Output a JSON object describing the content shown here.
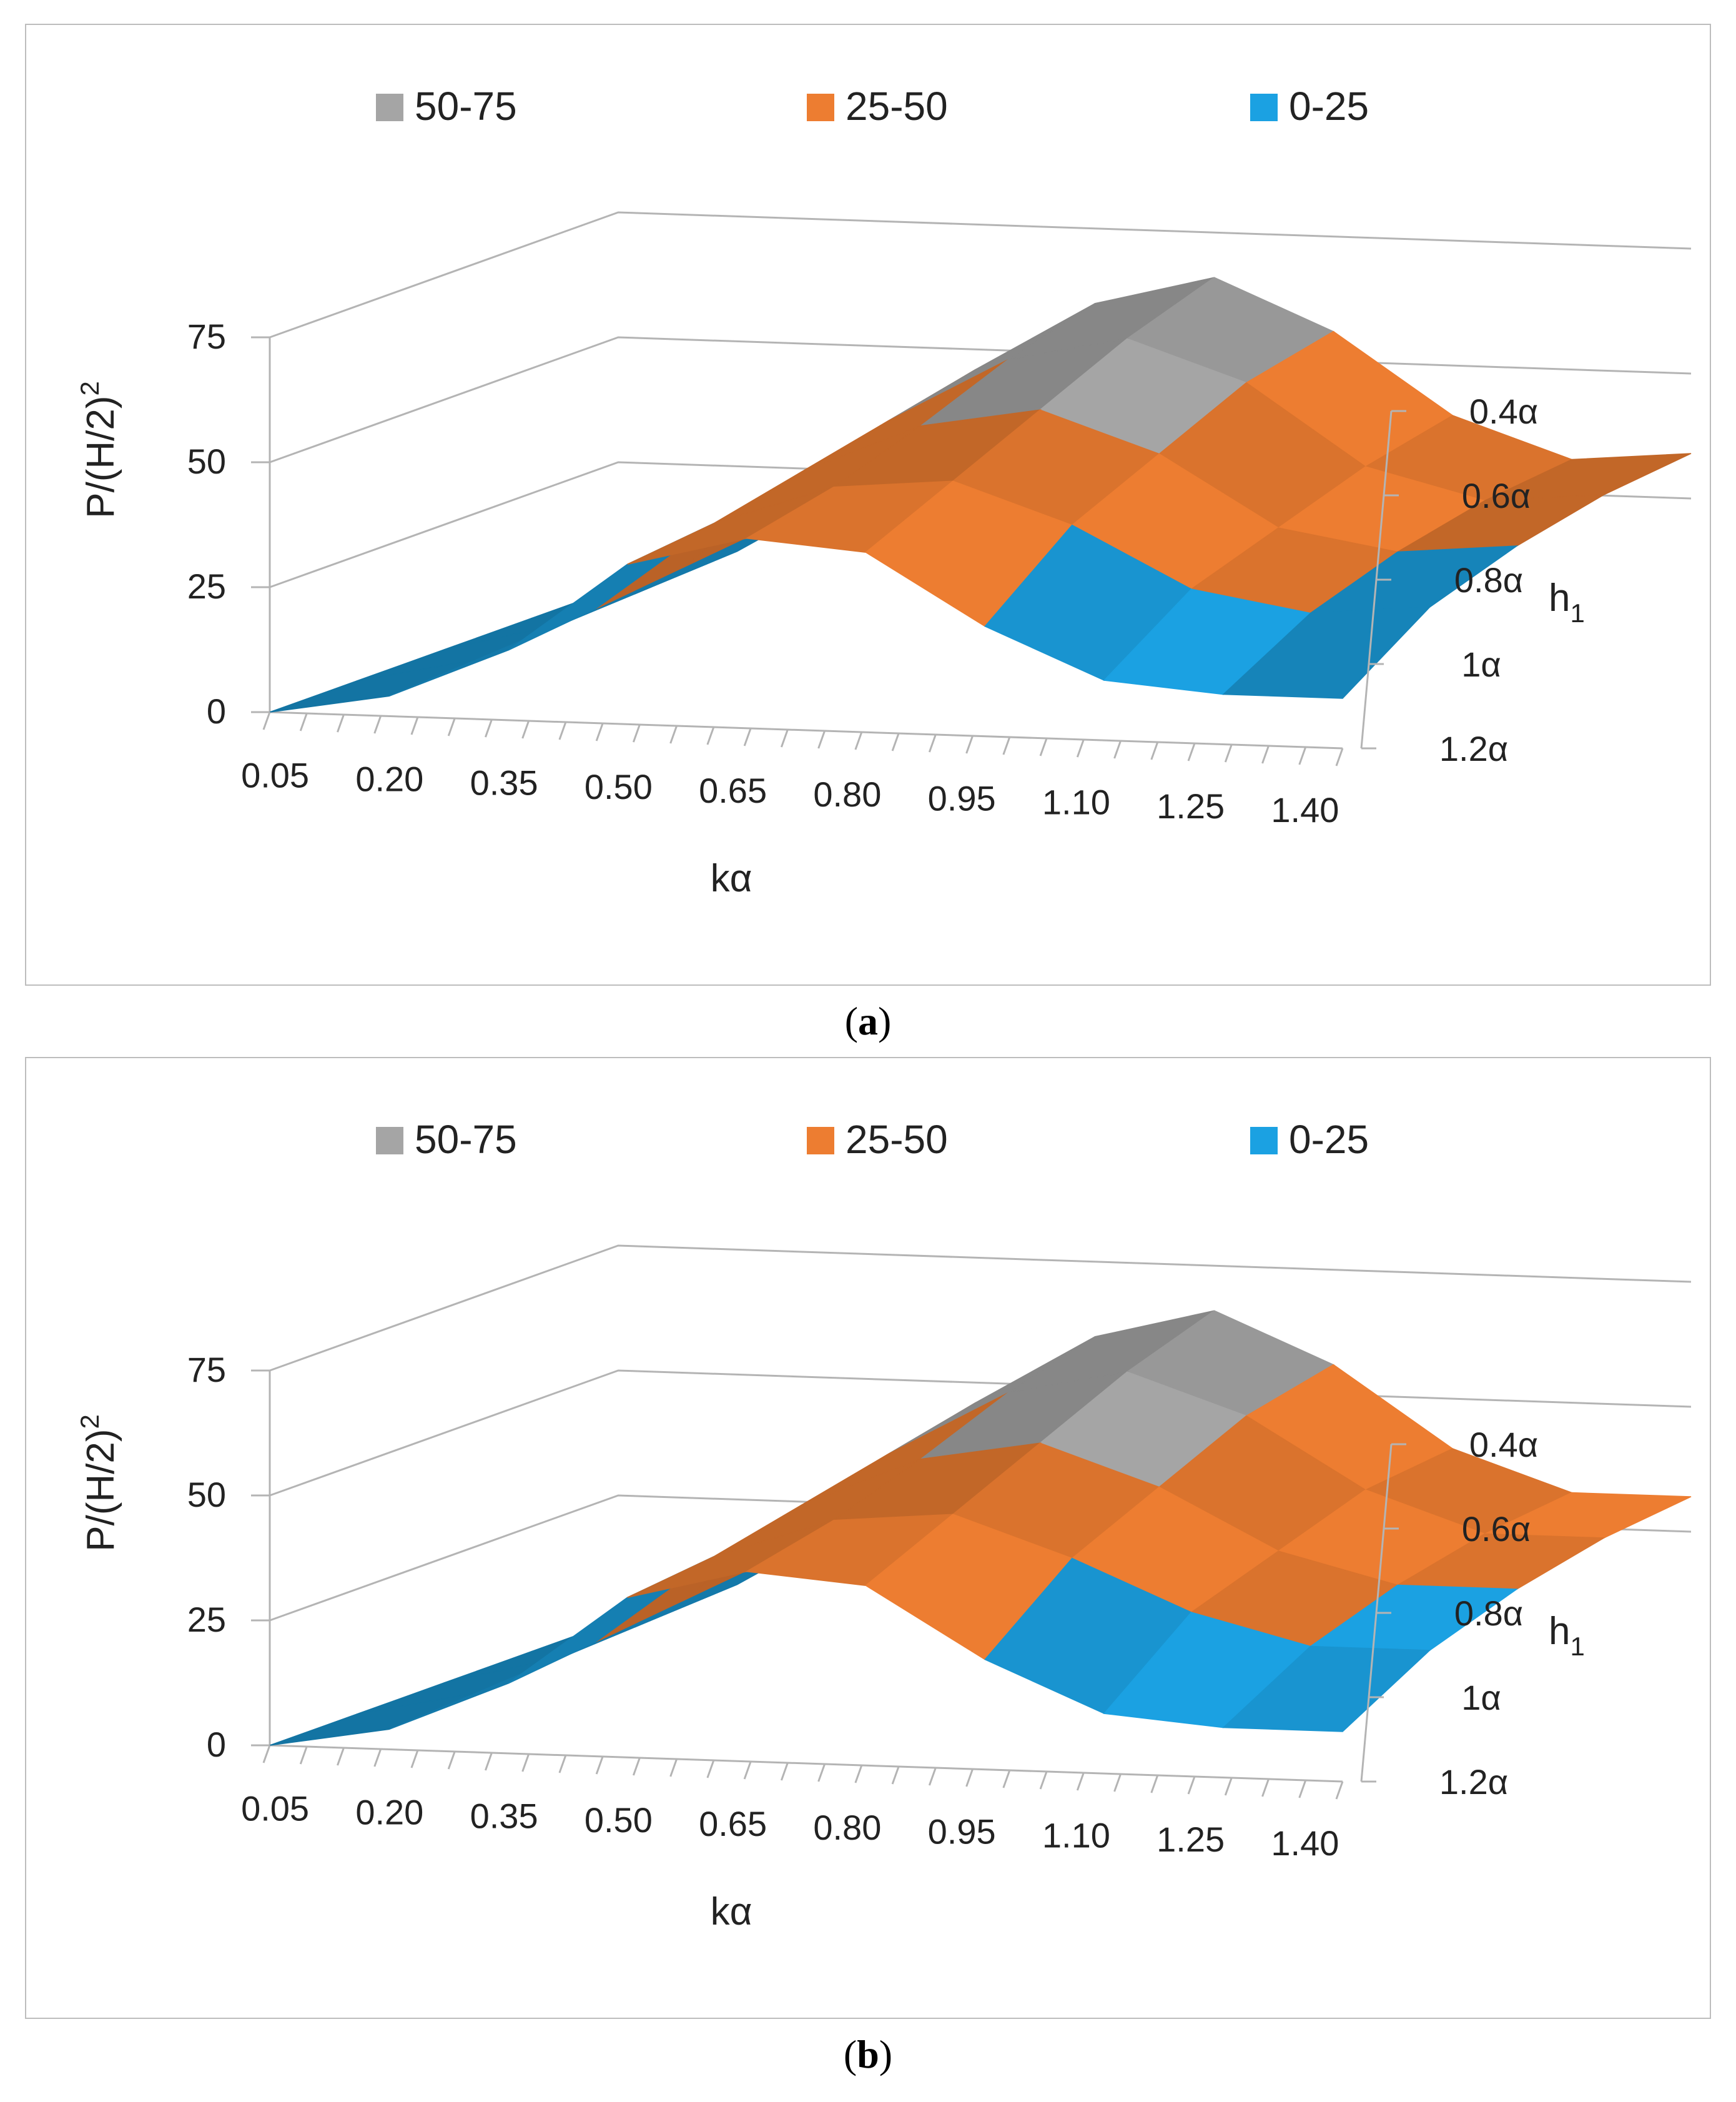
{
  "chart_data": [
    {
      "type": "surface",
      "panel": "a",
      "title": "",
      "xlabel": "kα",
      "ylabel": "P/(H/2)²",
      "ylabel_main": "P/(H/2)",
      "ylabel_sup": "2",
      "zlabel": "h₁",
      "zlabel_main": "h",
      "zlabel_sub": "1",
      "categories": [
        "0.05",
        "0.20",
        "0.35",
        "0.50",
        "0.65",
        "0.80",
        "0.95",
        "1.10",
        "1.25",
        "1.40"
      ],
      "depth_categories": [
        "0.4α",
        "0.6α",
        "0.8α",
        "1α",
        "1.2α"
      ],
      "yticks": [
        "0",
        "25",
        "50",
        "75"
      ],
      "ylim": [
        0,
        75
      ],
      "legend": [
        {
          "label": "50-75",
          "color": "#a5a5a5"
        },
        {
          "label": "25-50",
          "color": "#ed7d31"
        },
        {
          "label": "0-25",
          "color": "#1ba1e2"
        }
      ],
      "series": [
        {
          "name": "0.4α",
          "values": [
            0,
            8,
            22,
            46,
            60,
            66,
            56,
            40,
            32,
            34
          ]
        },
        {
          "name": "0.6α",
          "values": [
            0,
            7,
            20,
            42,
            55,
            60,
            52,
            36,
            30,
            32
          ]
        },
        {
          "name": "0.8α",
          "values": [
            0,
            6,
            18,
            38,
            48,
            52,
            44,
            30,
            26,
            28
          ]
        },
        {
          "name": "1α",
          "values": [
            0,
            5,
            16,
            34,
            42,
            44,
            36,
            24,
            20,
            22
          ]
        },
        {
          "name": "1.2α",
          "values": [
            0,
            4,
            14,
            32,
            38,
            36,
            22,
            12,
            10,
            10
          ]
        }
      ],
      "caption_open": "(",
      "caption_label": "a",
      "caption_close": ")"
    },
    {
      "type": "surface",
      "panel": "b",
      "title": "",
      "xlabel": "kα",
      "ylabel": "P/(H/2)²",
      "ylabel_main": "P/(H/2)",
      "ylabel_sup": "2",
      "zlabel": "h₁",
      "zlabel_main": "h",
      "zlabel_sub": "1",
      "categories": [
        "0.05",
        "0.20",
        "0.35",
        "0.50",
        "0.65",
        "0.80",
        "0.95",
        "1.10",
        "1.25",
        "1.40"
      ],
      "depth_categories": [
        "0.4α",
        "0.6α",
        "0.8α",
        "1α",
        "1.2α"
      ],
      "yticks": [
        "0",
        "25",
        "50",
        "75"
      ],
      "ylim": [
        0,
        75
      ],
      "legend": [
        {
          "label": "50-75",
          "color": "#a5a5a5"
        },
        {
          "label": "25-50",
          "color": "#ed7d31"
        },
        {
          "label": "0-25",
          "color": "#1ba1e2"
        }
      ],
      "series": [
        {
          "name": "0.4α",
          "values": [
            0,
            8,
            22,
            46,
            60,
            66,
            56,
            40,
            32,
            32
          ]
        },
        {
          "name": "0.6α",
          "values": [
            0,
            7,
            20,
            42,
            55,
            60,
            52,
            38,
            30,
            30
          ]
        },
        {
          "name": "0.8α",
          "values": [
            0,
            6,
            18,
            38,
            48,
            52,
            44,
            32,
            26,
            26
          ]
        },
        {
          "name": "1α",
          "values": [
            0,
            5,
            16,
            34,
            42,
            44,
            36,
            26,
            20,
            20
          ]
        },
        {
          "name": "1.2α",
          "values": [
            0,
            4,
            14,
            32,
            38,
            36,
            22,
            12,
            10,
            10
          ]
        }
      ],
      "caption_open": "(",
      "caption_label": "b",
      "caption_close": ")"
    }
  ]
}
